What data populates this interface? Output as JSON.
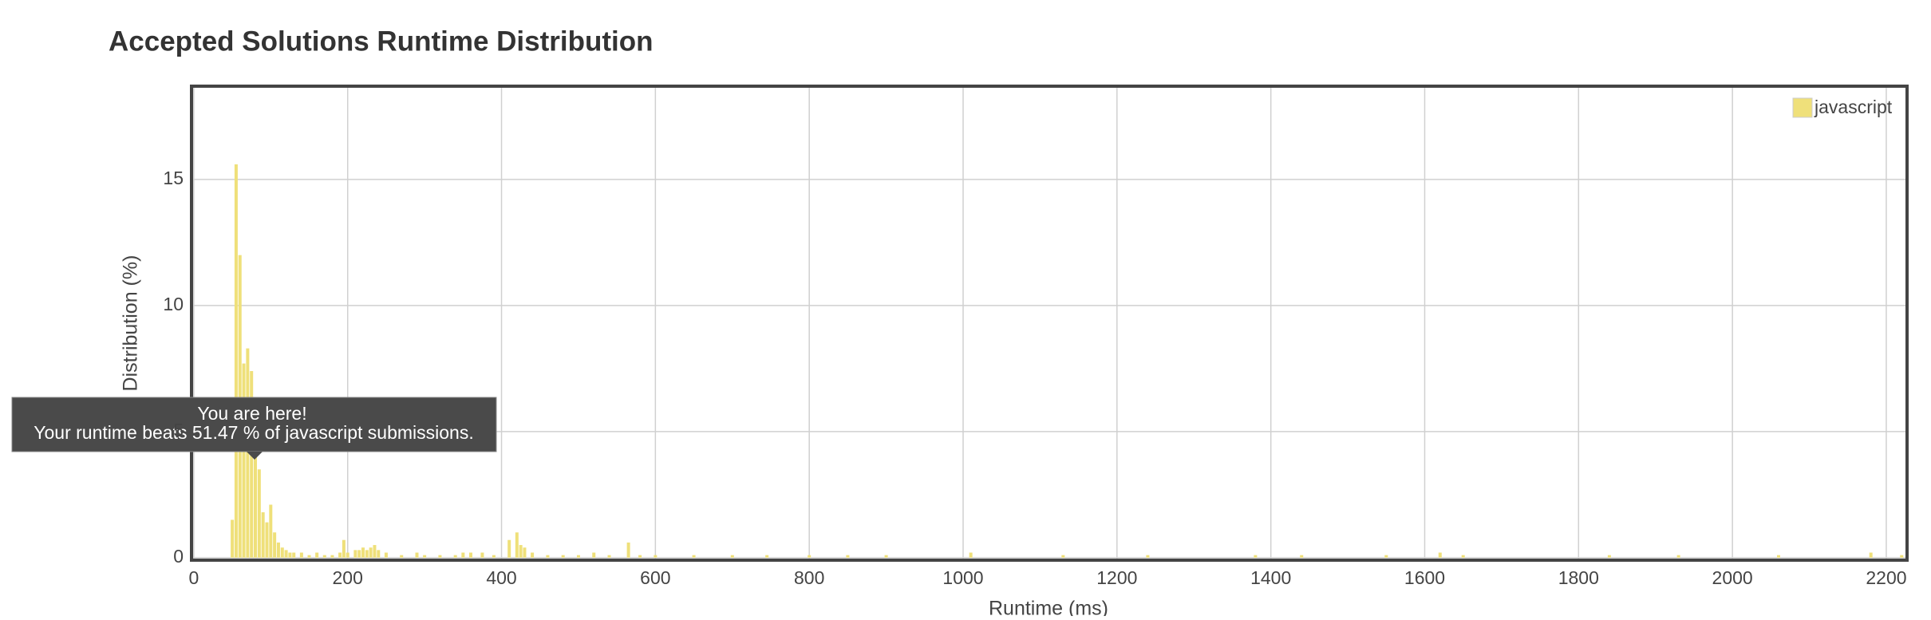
{
  "chart_data": {
    "type": "bar",
    "title": "Accepted Solutions Runtime Distribution",
    "x_label": "Runtime (ms)",
    "y_label": "Distribution (%)",
    "x": [
      50,
      55,
      60,
      65,
      70,
      75,
      80,
      85,
      90,
      95,
      100,
      105,
      110,
      115,
      120,
      125,
      130,
      140,
      150,
      160,
      170,
      180,
      190,
      195,
      200,
      210,
      215,
      220,
      225,
      230,
      235,
      240,
      250,
      270,
      290,
      300,
      320,
      340,
      350,
      360,
      375,
      390,
      410,
      420,
      425,
      430,
      440,
      460,
      480,
      500,
      520,
      540,
      565,
      580,
      600,
      650,
      700,
      745,
      800,
      850,
      900,
      1010,
      1130,
      1240,
      1380,
      1440,
      1550,
      1620,
      1650,
      1840,
      1930,
      2060,
      2180,
      2220
    ],
    "series": [
      {
        "name": "javascript",
        "color": "#efe07a",
        "values": [
          1.5,
          15.6,
          12.0,
          7.7,
          8.3,
          7.4,
          4.2,
          3.5,
          1.8,
          1.4,
          2.1,
          1.0,
          0.6,
          0.4,
          0.3,
          0.2,
          0.2,
          0.2,
          0.1,
          0.2,
          0.1,
          0.1,
          0.2,
          0.7,
          0.2,
          0.3,
          0.3,
          0.4,
          0.3,
          0.4,
          0.5,
          0.3,
          0.2,
          0.1,
          0.2,
          0.1,
          0.1,
          0.1,
          0.2,
          0.2,
          0.2,
          0.1,
          0.7,
          1.0,
          0.5,
          0.4,
          0.2,
          0.1,
          0.1,
          0.1,
          0.2,
          0.1,
          0.6,
          0.1,
          0.1,
          0.1,
          0.1,
          0.1,
          0.1,
          0.1,
          0.1,
          0.2,
          0.1,
          0.1,
          0.1,
          0.1,
          0.1,
          0.2,
          0.1,
          0.1,
          0.1,
          0.1,
          0.2,
          0.1
        ]
      }
    ],
    "xlim": [
      -3,
      2227
    ],
    "ylim": [
      -0.1,
      18.7
    ],
    "xticks": [
      0,
      200,
      400,
      600,
      800,
      1000,
      1200,
      1400,
      1600,
      1800,
      2000,
      2200
    ],
    "yticks": [
      0,
      5,
      10,
      15
    ],
    "grid": true,
    "legend": "upper right",
    "tooltip": {
      "line1": "You are here!",
      "line2": "Your runtime beats 51.47 % of javascript submissions."
    }
  }
}
